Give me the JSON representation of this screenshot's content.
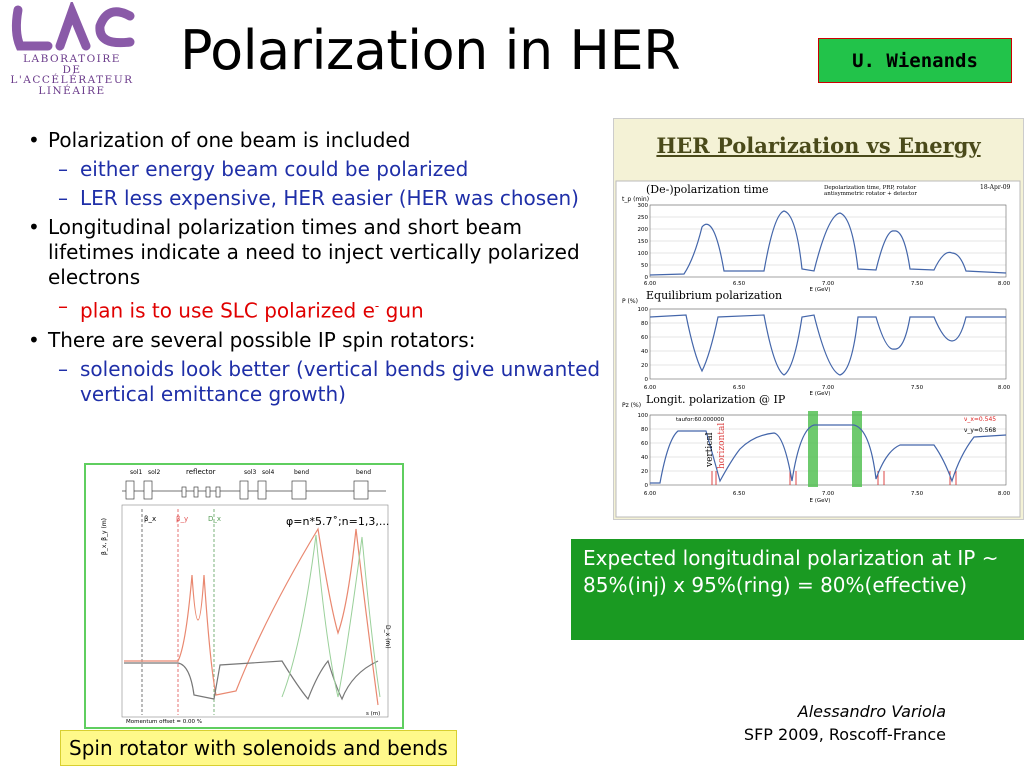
{
  "logo": {
    "lines": [
      "LABORATOIRE",
      "DE L'ACCÉLÉRATEUR",
      "LINÉAIRE"
    ],
    "mark_color": "#8a5aa8"
  },
  "title": "Polarization in HER",
  "author_badge": "U. Wienands",
  "bullets": [
    {
      "level": 1,
      "text": "Polarization of one beam is included"
    },
    {
      "level": 2,
      "text": "either energy beam could be polarized",
      "color": "blue"
    },
    {
      "level": 2,
      "text": "LER less expensive, HER easier (HER was chosen)",
      "color": "blue"
    },
    {
      "level": 1,
      "text": "Longitudinal polarization times and short beam lifetimes indicate a need to inject vertically polarized electrons"
    },
    {
      "level": 2,
      "text_before": "plan is to use SLC polarized e",
      "sup": "-",
      "text_after": " gun",
      "color": "red"
    },
    {
      "level": 1,
      "text": "There are several possible IP spin rotators:"
    },
    {
      "level": 2,
      "text": "solenoids look better (vertical bends give unwanted vertical emittance growth)",
      "color": "blue"
    }
  ],
  "her_figure": {
    "title": "HER Polarization vs Energy",
    "date": "18-Apr-09",
    "note_line1": "Depolarization time, PRP, rotator",
    "note_line2": "antisymmetric rotator + detector",
    "panel_labels": [
      "(De-)polarization time",
      "Equilibrium polarization",
      "Longit. polarization @ IP"
    ],
    "y_axis_labels": [
      "t_p (min)",
      "P (%)",
      "Pz (%)"
    ],
    "x_axis_label": "E (GeV)",
    "x_ticks": [
      "6.00",
      "6.50",
      "7.00",
      "7.50",
      "8.00"
    ],
    "y_ticks_top": [
      "300",
      "250",
      "200",
      "150",
      "100",
      "50",
      "0"
    ],
    "y_ticks_pct": [
      "100",
      "80",
      "60",
      "40",
      "20",
      "0"
    ],
    "taufor": "taufor:60.000000",
    "nu_x": "ν_x=0.545",
    "nu_y": "ν_y=0.568",
    "vertical_label": "vertical",
    "horizontal_label": "horizontal"
  },
  "expected_box": "Expected longitudinal polarization at  IP ~ 85%(inj) x 95%(ring) = 80%(effective)",
  "spin_figure": {
    "labels_top": [
      "sol1",
      "sol2",
      "reflector",
      "sol3",
      "sol4",
      "bend",
      "bend"
    ],
    "formula": "φ=n*5.7˚;n=1,3,...",
    "beta_labels": [
      "β_x",
      "β_y",
      "D_x"
    ],
    "footer": "Momentum offset =  0.00 %",
    "x_unit": "s (m)"
  },
  "caption": "Spin rotator with solenoids and bends",
  "credit": {
    "name": "Alessandro Variola",
    "event": "SFP 2009, Roscoff-France"
  }
}
